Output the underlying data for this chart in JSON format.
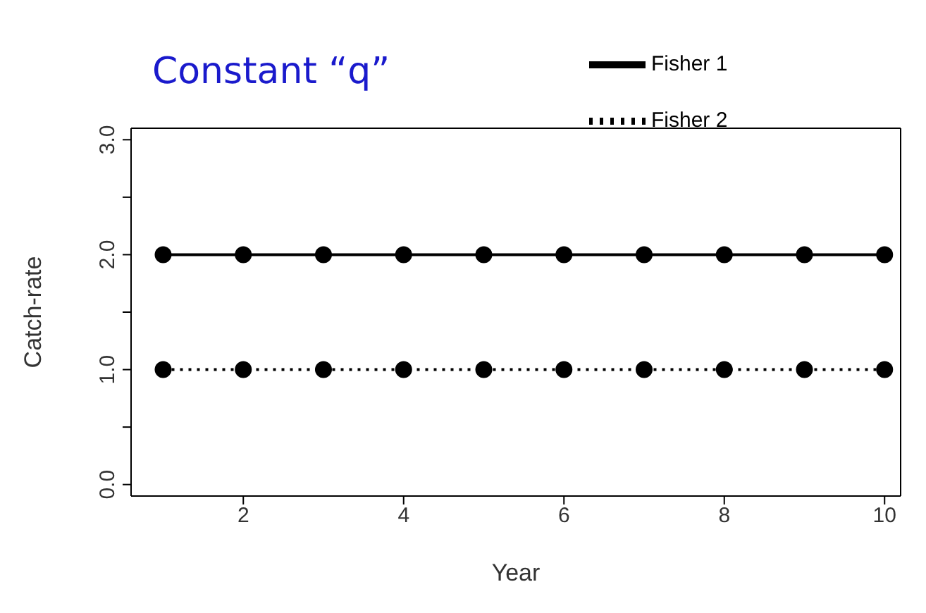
{
  "chart_data": {
    "type": "line",
    "xlabel": "Year",
    "ylabel": "Catch-rate",
    "annotations": [
      "Constant “q”"
    ],
    "x": [
      1,
      2,
      3,
      4,
      5,
      6,
      7,
      8,
      9,
      10
    ],
    "series": [
      {
        "name": "Fisher 1",
        "color": "#000000",
        "line_style": "solid",
        "values": [
          2,
          2,
          2,
          2,
          2,
          2,
          2,
          2,
          2,
          2
        ]
      },
      {
        "name": "Fisher 2",
        "color": "#000000",
        "line_style": "dotted",
        "values": [
          1,
          1,
          1,
          1,
          1,
          1,
          1,
          1,
          1,
          1
        ]
      }
    ],
    "xlim": [
      0.6,
      10.2
    ],
    "xticks": [
      2,
      4,
      6,
      8,
      10
    ],
    "ylim": [
      -0.1,
      3.1
    ],
    "yticks": [
      {
        "value": 0,
        "label": "0.0"
      },
      {
        "value": 0.5,
        "label": null
      },
      {
        "value": 1,
        "label": "1.0"
      },
      {
        "value": 1.5,
        "label": null
      },
      {
        "value": 2,
        "label": "2.0"
      },
      {
        "value": 2.5,
        "label": null
      },
      {
        "value": 3,
        "label": "3.0"
      }
    ],
    "marker": "circle",
    "legend": "top right",
    "grid": false
  }
}
